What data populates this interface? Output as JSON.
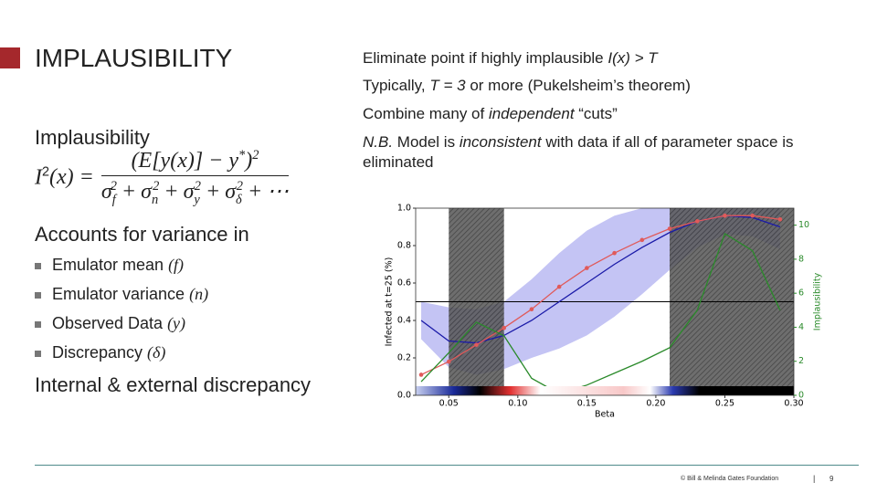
{
  "header": {
    "title": "IMPLAUSIBILITY"
  },
  "left": {
    "heading": "Implausibility",
    "formula": {
      "lhs": "I",
      "lhs_sup": "2",
      "lhs_arg": "(x) =",
      "numerator": "(E[y(x)] − y",
      "num_star": "*",
      "num_close": ")",
      "num_sup": "2",
      "denominator": [
        {
          "base": "σ",
          "sub": "f",
          "sup": "2"
        },
        {
          "base": "σ",
          "sub": "n",
          "sup": "2"
        },
        {
          "base": "σ",
          "sub": "y",
          "sup": "2"
        },
        {
          "base": "σ",
          "sub": "δ",
          "sup": "2"
        }
      ],
      "plus": "+",
      "ellipsis": "⋯"
    },
    "subheading": "Accounts for variance in",
    "bullets": [
      {
        "text": "Emulator mean ",
        "math": "(f)"
      },
      {
        "text": "Emulator variance ",
        "math": "(n)"
      },
      {
        "text": "Observed Data ",
        "math": "(y)"
      },
      {
        "text": "Discrepancy ",
        "math": "(δ)"
      }
    ],
    "closing": "Internal & external discrepancy"
  },
  "right": {
    "bullets": [
      [
        {
          "text": "Eliminate point if highly implausible "
        },
        {
          "text": "I(x) > T",
          "italic": true
        }
      ],
      [
        {
          "text": "Typically, "
        },
        {
          "text": "T = 3",
          "italic": true
        },
        {
          "text": " or more (Pukelsheim’s theorem)"
        }
      ],
      [
        {
          "text": "Combine many of "
        },
        {
          "text": "independent",
          "italic": true
        },
        {
          "text": " “cuts”"
        }
      ],
      [
        {
          "text": "N.B.",
          "italic": true
        },
        {
          "text": " Model is "
        },
        {
          "text": "inconsistent",
          "italic": true
        },
        {
          "text": " with data if all of parameter space is eliminated"
        }
      ]
    ]
  },
  "chart": {
    "type": "line",
    "xlabel": "Beta",
    "ylabel": "Infected at t=25 (%)",
    "y2label": "Implausibility",
    "xlim": [
      0.026,
      0.3
    ],
    "ylim": [
      0,
      1
    ],
    "y2lim": [
      0,
      11
    ],
    "xticks": [
      0.05,
      {
        "value": 0.1,
        "label": "0.10"
      },
      0.15,
      {
        "value": 0.2,
        "label": "0.20"
      },
      0.25,
      {
        "value": 0.3,
        "label": "0.30"
      }
    ],
    "yticks": [
      {
        "value": 0,
        "label": "0.0"
      },
      0.2,
      0.4,
      0.6,
      0.8,
      {
        "value": 1,
        "label": "1.0"
      }
    ],
    "y2ticks": [
      0,
      2,
      4,
      6,
      8,
      10
    ],
    "y2color": "#2a8a2a",
    "excluded": [
      [
        0.05,
        0.09
      ],
      [
        0.21,
        0.3
      ]
    ],
    "observed": 0.5,
    "x": [
      0.03,
      0.05,
      0.07,
      0.09,
      0.11,
      0.13,
      0.15,
      0.17,
      0.19,
      0.21,
      0.23,
      0.25,
      0.27,
      0.29
    ],
    "band": {
      "color": "#c4c4f4",
      "lower": [
        0.3,
        0.15,
        0.11,
        0.14,
        0.2,
        0.25,
        0.32,
        0.42,
        0.54,
        0.67,
        0.79,
        0.86,
        0.85,
        0.78
      ],
      "upper": [
        0.5,
        0.47,
        0.46,
        0.5,
        0.62,
        0.76,
        0.88,
        0.96,
        1.0,
        1.0,
        1.0,
        1.0,
        1.0,
        1.0
      ]
    },
    "series": [
      {
        "color": "#1a1aa8",
        "style": "line",
        "values": [
          0.4,
          0.29,
          0.28,
          0.32,
          0.4,
          0.5,
          0.6,
          0.7,
          0.79,
          0.87,
          0.93,
          0.96,
          0.95,
          0.9
        ]
      },
      {
        "color": "#e05a5a",
        "style": "points-line",
        "values": [
          0.11,
          0.18,
          0.27,
          0.36,
          0.46,
          0.58,
          0.68,
          0.76,
          0.83,
          0.89,
          0.93,
          0.96,
          0.96,
          0.94
        ]
      },
      {
        "color": "#2a8a2a",
        "style": "line",
        "axis": "y2",
        "values": [
          0.8,
          2.5,
          4.3,
          3.5,
          1.0,
          0.1,
          0.6,
          1.3,
          2.0,
          2.8,
          5.0,
          9.5,
          8.5,
          5.0
        ]
      }
    ]
  },
  "footer": {
    "copyright": "© Bill & Melinda Gates Foundation",
    "separator": "|",
    "page": "9"
  }
}
